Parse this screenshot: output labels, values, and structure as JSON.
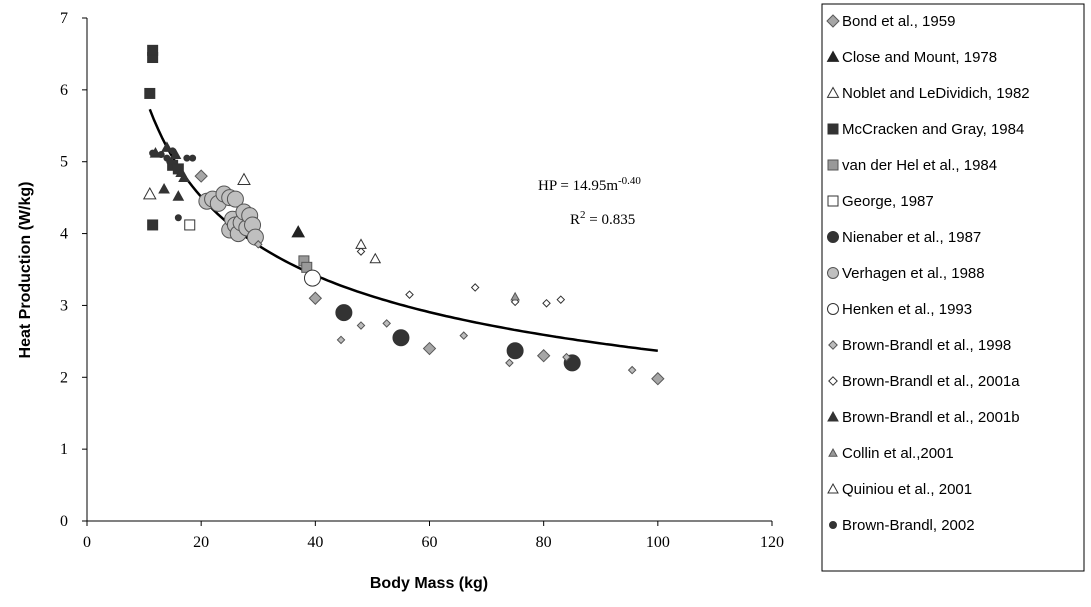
{
  "chart_data": {
    "type": "scatter",
    "xlabel": "Body Mass (kg)",
    "ylabel": "Heat Production (W/kg)",
    "xlim": [
      0,
      120
    ],
    "ylim": [
      0,
      7
    ],
    "xticks": [
      0,
      20,
      40,
      60,
      80,
      100,
      120
    ],
    "yticks": [
      0,
      1,
      2,
      3,
      4,
      5,
      6,
      7
    ],
    "grid": false,
    "legend_position": "right",
    "annotation": {
      "equation_base": "HP = 14.95m",
      "equation_exponent": "-0.40",
      "r2_label": "R",
      "r2_exponent": "2",
      "r2_value": " = 0.835"
    },
    "fit": {
      "coefficient": 14.95,
      "exponent": -0.4,
      "x_range": [
        11,
        100
      ],
      "r2": 0.835
    },
    "series": [
      {
        "name": "Bond et al., 1959",
        "marker": "diamond",
        "fill": "#a6a6a6",
        "stroke": "#595959",
        "size": 5,
        "points": [
          [
            20,
            4.8
          ],
          [
            40,
            3.1
          ],
          [
            60,
            2.4
          ],
          [
            80,
            2.3
          ],
          [
            100,
            1.98
          ]
        ]
      },
      {
        "name": "Close and Mount, 1978",
        "marker": "triangle",
        "fill": "#222222",
        "stroke": "#222222",
        "size": 6,
        "points": [
          [
            37,
            4.02
          ]
        ]
      },
      {
        "name": "Noblet and LeDividich, 1982",
        "marker": "triangle",
        "fill": "#ffffff",
        "stroke": "#333333",
        "size": 6,
        "points": [
          [
            11,
            4.55
          ],
          [
            27.5,
            4.75
          ]
        ]
      },
      {
        "name": "McCracken and Gray, 1984",
        "marker": "square",
        "fill": "#333333",
        "stroke": "#333333",
        "size": 5,
        "points": [
          [
            11,
            5.95
          ],
          [
            11.5,
            6.45
          ],
          [
            11.5,
            6.55
          ],
          [
            11.5,
            4.12
          ],
          [
            15,
            4.95
          ],
          [
            16,
            4.9
          ]
        ]
      },
      {
        "name": "van der Hel et al., 1984",
        "marker": "square",
        "fill": "#999999",
        "stroke": "#555555",
        "size": 5,
        "points": [
          [
            38,
            3.62
          ],
          [
            38.5,
            3.53
          ]
        ]
      },
      {
        "name": "George, 1987",
        "marker": "square",
        "fill": "#ffffff",
        "stroke": "#333333",
        "size": 5,
        "points": [
          [
            18,
            4.12
          ]
        ]
      },
      {
        "name": "Nienaber et al., 1987",
        "marker": "circle",
        "fill": "#333333",
        "stroke": "#333333",
        "size": 8,
        "points": [
          [
            45,
            2.9
          ],
          [
            55,
            2.55
          ],
          [
            75,
            2.37
          ],
          [
            85,
            2.2
          ]
        ]
      },
      {
        "name": "Verhagen et al., 1988",
        "marker": "circle",
        "fill": "#bfbfbf",
        "stroke": "#555555",
        "size": 8,
        "points": [
          [
            21,
            4.45
          ],
          [
            22,
            4.48
          ],
          [
            23,
            4.42
          ],
          [
            24,
            4.55
          ],
          [
            25,
            4.5
          ],
          [
            25,
            4.05
          ],
          [
            25.5,
            4.2
          ],
          [
            26,
            4.12
          ],
          [
            26,
            4.48
          ],
          [
            26.5,
            4.0
          ],
          [
            27,
            4.15
          ],
          [
            27.5,
            4.3
          ],
          [
            28,
            4.08
          ],
          [
            28.5,
            4.25
          ],
          [
            29,
            4.12
          ],
          [
            29.5,
            3.95
          ]
        ]
      },
      {
        "name": "Henken et al., 1993",
        "marker": "circle",
        "fill": "#ffffff",
        "stroke": "#333333",
        "size": 8,
        "points": [
          [
            39.5,
            3.38
          ]
        ]
      },
      {
        "name": "Brown-Brandl et al., 1998",
        "marker": "diamond",
        "fill": "#bbbbbb",
        "stroke": "#555555",
        "size": 3,
        "points": [
          [
            30,
            3.85
          ],
          [
            44.5,
            2.52
          ],
          [
            48,
            2.72
          ],
          [
            52.5,
            2.75
          ],
          [
            66,
            2.58
          ],
          [
            74,
            2.2
          ],
          [
            84,
            2.28
          ],
          [
            95.5,
            2.1
          ]
        ]
      },
      {
        "name": "Brown-Brandl et al., 2001a",
        "marker": "diamond",
        "fill": "#ffffff",
        "stroke": "#333333",
        "size": 3,
        "points": [
          [
            48,
            3.75
          ],
          [
            56.5,
            3.15
          ],
          [
            68,
            3.25
          ],
          [
            75,
            3.05
          ],
          [
            80.5,
            3.03
          ],
          [
            83,
            3.08
          ]
        ]
      },
      {
        "name": "Brown-Brandl et al., 2001b",
        "marker": "triangle",
        "fill": "#333333",
        "stroke": "#333333",
        "size": 5,
        "points": [
          [
            13.5,
            4.62
          ],
          [
            14,
            5.2
          ],
          [
            15.5,
            5.1
          ],
          [
            16,
            4.52
          ],
          [
            16.5,
            4.85
          ],
          [
            17,
            4.78
          ],
          [
            12,
            5.12
          ]
        ]
      },
      {
        "name": "Collin et al.,2001",
        "marker": "triangle",
        "fill": "#999999",
        "stroke": "#555555",
        "size": 4,
        "points": [
          [
            75,
            3.12
          ]
        ]
      },
      {
        "name": "Quiniou et al., 2001",
        "marker": "triangle",
        "fill": "#ffffff",
        "stroke": "#333333",
        "size": 5,
        "points": [
          [
            48,
            3.85
          ],
          [
            50.5,
            3.65
          ]
        ]
      },
      {
        "name": "Brown-Brandl, 2002",
        "marker": "circle",
        "fill": "#333333",
        "stroke": "#333333",
        "size": 3,
        "points": [
          [
            11.5,
            5.12
          ],
          [
            13,
            5.1
          ],
          [
            14.5,
            5.0
          ],
          [
            16,
            4.22
          ],
          [
            17.5,
            5.05
          ],
          [
            18.5,
            5.05
          ],
          [
            15,
            5.15
          ],
          [
            14,
            5.05
          ]
        ]
      }
    ]
  }
}
